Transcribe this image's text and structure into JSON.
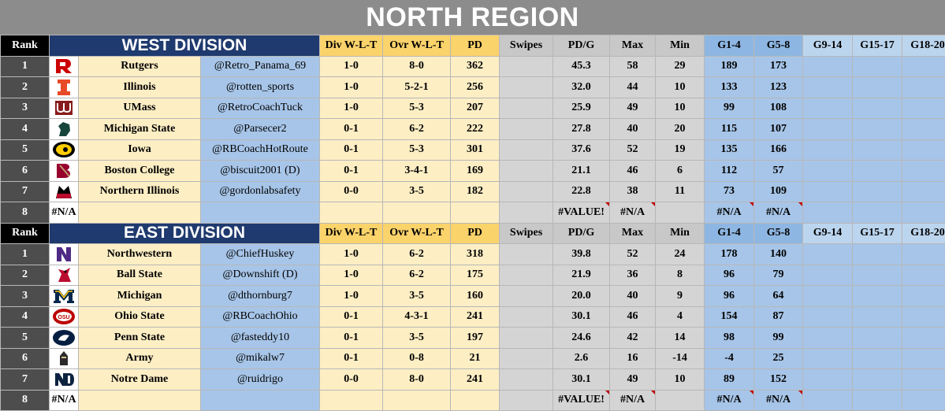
{
  "title": "NORTH REGION",
  "headers": {
    "rank": "Rank",
    "div": "Div W-L-T",
    "ovr": "Ovr W-L-T",
    "pd": "PD",
    "swipes": "Swipes",
    "pdg": "PD/G",
    "max": "Max",
    "min": "Min",
    "g1": "G1-4",
    "g5": "G5-8",
    "g9": "G9-14",
    "g15": "G15-17",
    "g18": "G18-20"
  },
  "divisions": [
    {
      "name": "WEST DIVISION",
      "rows": [
        {
          "rank": "1",
          "logo_text": "",
          "team": "Rutgers",
          "coach": "@Retro_Panama_69",
          "div": "1-0",
          "ovr": "8-0",
          "pd": "362",
          "swipes": "",
          "pdg": "45.3",
          "max": "58",
          "min": "29",
          "g1": "189",
          "g5": "173"
        },
        {
          "rank": "2",
          "logo_text": "",
          "team": "Illinois",
          "coach": "@rotten_sports",
          "div": "1-0",
          "ovr": "5-2-1",
          "pd": "256",
          "swipes": "",
          "pdg": "32.0",
          "max": "44",
          "min": "10",
          "g1": "133",
          "g5": "123"
        },
        {
          "rank": "3",
          "logo_text": "",
          "team": "UMass",
          "coach": "@RetroCoachTuck",
          "div": "1-0",
          "ovr": "5-3",
          "pd": "207",
          "swipes": "",
          "pdg": "25.9",
          "max": "49",
          "min": "10",
          "g1": "99",
          "g5": "108"
        },
        {
          "rank": "4",
          "logo_text": "",
          "team": "Michigan State",
          "coach": "@Parsecer2",
          "div": "0-1",
          "ovr": "6-2",
          "pd": "222",
          "swipes": "",
          "pdg": "27.8",
          "max": "40",
          "min": "20",
          "g1": "115",
          "g5": "107"
        },
        {
          "rank": "5",
          "logo_text": "",
          "team": "Iowa",
          "coach": "@RBCoachHotRoute",
          "div": "0-1",
          "ovr": "5-3",
          "pd": "301",
          "swipes": "",
          "pdg": "37.6",
          "max": "52",
          "min": "19",
          "g1": "135",
          "g5": "166"
        },
        {
          "rank": "6",
          "logo_text": "",
          "team": "Boston College",
          "coach": "@biscuit2001 (D)",
          "div": "0-1",
          "ovr": "3-4-1",
          "pd": "169",
          "swipes": "",
          "pdg": "21.1",
          "max": "46",
          "min": "6",
          "g1": "112",
          "g5": "57"
        },
        {
          "rank": "7",
          "logo_text": "",
          "team": "Northern Illinois",
          "coach": "@gordonlabsafety",
          "div": "0-0",
          "ovr": "3-5",
          "pd": "182",
          "swipes": "",
          "pdg": "22.8",
          "max": "38",
          "min": "11",
          "g1": "73",
          "g5": "109"
        },
        {
          "rank": "8",
          "logo_text": "#N/A",
          "team": "",
          "coach": "",
          "div": "",
          "ovr": "",
          "pd": "",
          "swipes": "",
          "pdg": "#VALUE!",
          "max": "#N/A",
          "min": "",
          "g1": "#N/A",
          "g5": "#N/A"
        }
      ]
    },
    {
      "name": "EAST DIVISION",
      "rows": [
        {
          "rank": "1",
          "logo_text": "",
          "team": "Northwestern",
          "coach": "@ChiefHuskey",
          "div": "1-0",
          "ovr": "6-2",
          "pd": "318",
          "swipes": "",
          "pdg": "39.8",
          "max": "52",
          "min": "24",
          "g1": "178",
          "g5": "140"
        },
        {
          "rank": "2",
          "logo_text": "",
          "team": "Ball State",
          "coach": "@Downshift (D)",
          "div": "1-0",
          "ovr": "6-2",
          "pd": "175",
          "swipes": "",
          "pdg": "21.9",
          "max": "36",
          "min": "8",
          "g1": "96",
          "g5": "79"
        },
        {
          "rank": "3",
          "logo_text": "",
          "team": "Michigan",
          "coach": "@dthornburg7",
          "div": "1-0",
          "ovr": "3-5",
          "pd": "160",
          "swipes": "",
          "pdg": "20.0",
          "max": "40",
          "min": "9",
          "g1": "96",
          "g5": "64"
        },
        {
          "rank": "4",
          "logo_text": "",
          "team": "Ohio State",
          "coach": "@RBCoachOhio",
          "div": "0-1",
          "ovr": "4-3-1",
          "pd": "241",
          "swipes": "",
          "pdg": "30.1",
          "max": "46",
          "min": "4",
          "g1": "154",
          "g5": "87"
        },
        {
          "rank": "5",
          "logo_text": "",
          "team": "Penn State",
          "coach": "@fasteddy10",
          "div": "0-1",
          "ovr": "3-5",
          "pd": "197",
          "swipes": "",
          "pdg": "24.6",
          "max": "42",
          "min": "14",
          "g1": "98",
          "g5": "99"
        },
        {
          "rank": "6",
          "logo_text": "",
          "team": "Army",
          "coach": "@mikalw7",
          "div": "0-1",
          "ovr": "0-8",
          "pd": "21",
          "swipes": "",
          "pdg": "2.6",
          "max": "16",
          "min": "-14",
          "g1": "-4",
          "g5": "25"
        },
        {
          "rank": "7",
          "logo_text": "",
          "team": "Notre Dame",
          "coach": "@ruidrigo",
          "div": "0-0",
          "ovr": "8-0",
          "pd": "241",
          "swipes": "",
          "pdg": "30.1",
          "max": "49",
          "min": "10",
          "g1": "89",
          "g5": "152"
        },
        {
          "rank": "8",
          "logo_text": "#N/A",
          "team": "",
          "coach": "",
          "div": "",
          "ovr": "",
          "pd": "",
          "swipes": "",
          "pdg": "#VALUE!",
          "max": "#N/A",
          "min": "",
          "g1": "#N/A",
          "g5": "#N/A"
        }
      ]
    }
  ],
  "logo_icons": {
    "west": [
      "rutgers-r-logo-icon",
      "illinois-i-logo-icon",
      "umass-logo-icon",
      "michigan-state-logo-icon",
      "iowa-hawkeye-logo-icon",
      "boston-college-logo-icon",
      "northern-illinois-logo-icon",
      ""
    ],
    "east": [
      "northwestern-n-logo-icon",
      "ball-state-cardinal-logo-icon",
      "michigan-block-m-logo-icon",
      "ohio-state-logo-icon",
      "penn-state-lion-logo-icon",
      "army-knight-logo-icon",
      "notre-dame-nd-logo-icon",
      ""
    ]
  },
  "colors": {
    "title_bg": "#8c8c8c",
    "division_header_bg": "#1f3a6e",
    "team_cell_bg": "#fdeec4",
    "coach_cell_bg": "#a7c5e8",
    "rank_cell_bg": "#4d4d4d",
    "swipes_bg": "#d4d4d4"
  }
}
